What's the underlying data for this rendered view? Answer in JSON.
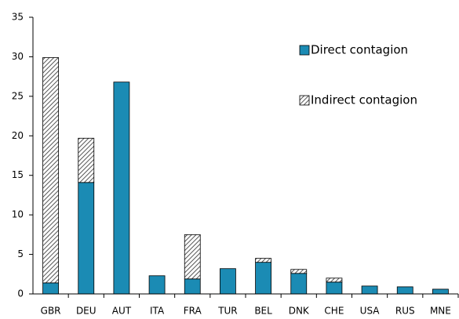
{
  "chart_data": {
    "type": "stacked_bar",
    "categories": [
      "GBR",
      "DEU",
      "AUT",
      "ITA",
      "FRA",
      "TUR",
      "BEL",
      "DNK",
      "CHE",
      "USA",
      "RUS",
      "MNE"
    ],
    "series": [
      {
        "name": "Direct contagion",
        "color": "#1b8bb4",
        "values": [
          1.4,
          14.1,
          26.8,
          2.3,
          1.9,
          3.2,
          4.0,
          2.6,
          1.5,
          1.0,
          0.9,
          0.6
        ]
      },
      {
        "name": "Indirect contagion",
        "color": "#555555",
        "pattern": "hatch",
        "values": [
          28.5,
          5.6,
          0,
          0,
          5.6,
          0,
          0.5,
          0.5,
          0.5,
          0,
          0,
          0
        ]
      }
    ],
    "ylim": [
      0,
      35
    ],
    "yticks": [
      0,
      5,
      10,
      15,
      20,
      25,
      30,
      35
    ],
    "grid": false,
    "legend": "upper right"
  }
}
